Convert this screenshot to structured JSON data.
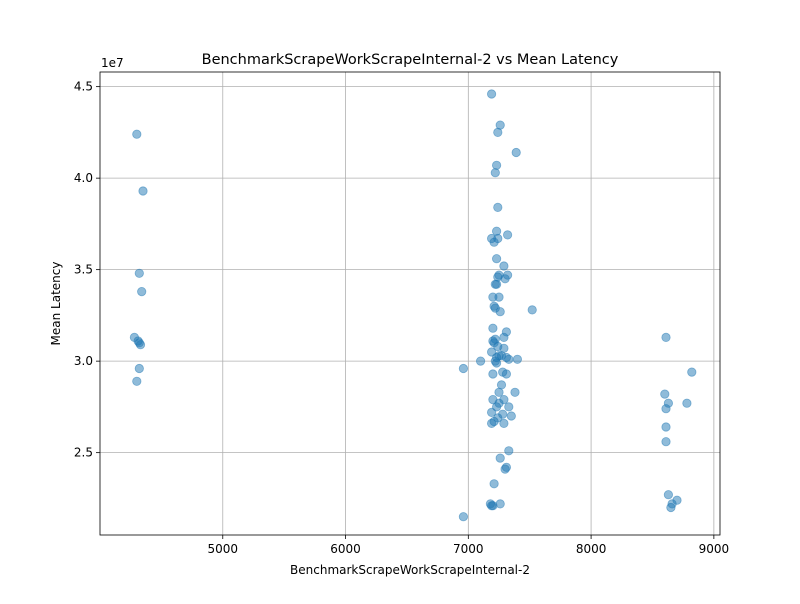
{
  "chart_data": {
    "type": "scatter",
    "title": "BenchmarkScrapeWorkScrapeInternal-2 vs Mean Latency",
    "xlabel": "BenchmarkScrapeWorkScrapeInternal-2",
    "ylabel": "Mean Latency",
    "y_multiplier": "1e7",
    "xlim": [
      4000,
      9050
    ],
    "ylim": [
      20500000,
      45800000
    ],
    "x_ticks": [
      5000,
      6000,
      7000,
      8000,
      9000
    ],
    "y_ticks": [
      25000000,
      30000000,
      35000000,
      40000000,
      45000000
    ],
    "y_tick_labels": [
      "2.5",
      "3.0",
      "3.5",
      "4.0",
      "4.5"
    ],
    "grid": true,
    "marker_color": "#1f77b4",
    "marker_alpha": 0.5,
    "points": [
      [
        4300,
        42400000
      ],
      [
        4350,
        39300000
      ],
      [
        4320,
        34800000
      ],
      [
        4340,
        33800000
      ],
      [
        4280,
        31300000
      ],
      [
        4310,
        31100000
      ],
      [
        4320,
        31000000
      ],
      [
        4330,
        30900000
      ],
      [
        4320,
        29600000
      ],
      [
        4300,
        28900000
      ],
      [
        7190,
        44600000
      ],
      [
        7260,
        42900000
      ],
      [
        7240,
        42500000
      ],
      [
        7390,
        41400000
      ],
      [
        7230,
        40700000
      ],
      [
        7220,
        40300000
      ],
      [
        7240,
        38400000
      ],
      [
        7230,
        37100000
      ],
      [
        7320,
        36900000
      ],
      [
        7190,
        36700000
      ],
      [
        7240,
        36700000
      ],
      [
        7210,
        36500000
      ],
      [
        7230,
        35600000
      ],
      [
        7290,
        35200000
      ],
      [
        7250,
        34700000
      ],
      [
        7320,
        34700000
      ],
      [
        7240,
        34600000
      ],
      [
        7300,
        34500000
      ],
      [
        7230,
        34200000
      ],
      [
        7220,
        34200000
      ],
      [
        7200,
        33500000
      ],
      [
        7250,
        33500000
      ],
      [
        7210,
        33000000
      ],
      [
        7220,
        32900000
      ],
      [
        7260,
        32700000
      ],
      [
        7520,
        32800000
      ],
      [
        7200,
        31800000
      ],
      [
        7310,
        31600000
      ],
      [
        7290,
        31300000
      ],
      [
        7220,
        31200000
      ],
      [
        7200,
        31100000
      ],
      [
        7210,
        31000000
      ],
      [
        7240,
        30800000
      ],
      [
        7190,
        30500000
      ],
      [
        7290,
        30700000
      ],
      [
        7250,
        30300000
      ],
      [
        7270,
        30300000
      ],
      [
        7230,
        30200000
      ],
      [
        7310,
        30200000
      ],
      [
        7330,
        30100000
      ],
      [
        7400,
        30100000
      ],
      [
        7220,
        30000000
      ],
      [
        7230,
        29900000
      ],
      [
        7100,
        30000000
      ],
      [
        6960,
        29600000
      ],
      [
        7200,
        29300000
      ],
      [
        7280,
        29400000
      ],
      [
        7310,
        29300000
      ],
      [
        7270,
        28700000
      ],
      [
        7250,
        28300000
      ],
      [
        7380,
        28300000
      ],
      [
        7200,
        27900000
      ],
      [
        7290,
        27900000
      ],
      [
        7250,
        27700000
      ],
      [
        7230,
        27500000
      ],
      [
        7330,
        27500000
      ],
      [
        7190,
        27200000
      ],
      [
        7280,
        27100000
      ],
      [
        7240,
        26900000
      ],
      [
        7350,
        27000000
      ],
      [
        7210,
        26700000
      ],
      [
        7190,
        26600000
      ],
      [
        7290,
        26600000
      ],
      [
        7330,
        25100000
      ],
      [
        7260,
        24700000
      ],
      [
        7310,
        24200000
      ],
      [
        7300,
        24100000
      ],
      [
        7210,
        23300000
      ],
      [
        7180,
        22200000
      ],
      [
        7200,
        22100000
      ],
      [
        7260,
        22200000
      ],
      [
        7190,
        22100000
      ],
      [
        6960,
        21500000
      ],
      [
        8610,
        31300000
      ],
      [
        8820,
        29400000
      ],
      [
        8600,
        28200000
      ],
      [
        8630,
        27700000
      ],
      [
        8780,
        27700000
      ],
      [
        8610,
        27400000
      ],
      [
        8610,
        26400000
      ],
      [
        8610,
        25600000
      ],
      [
        8630,
        22700000
      ],
      [
        8700,
        22400000
      ],
      [
        8660,
        22200000
      ],
      [
        8650,
        22000000
      ]
    ]
  }
}
